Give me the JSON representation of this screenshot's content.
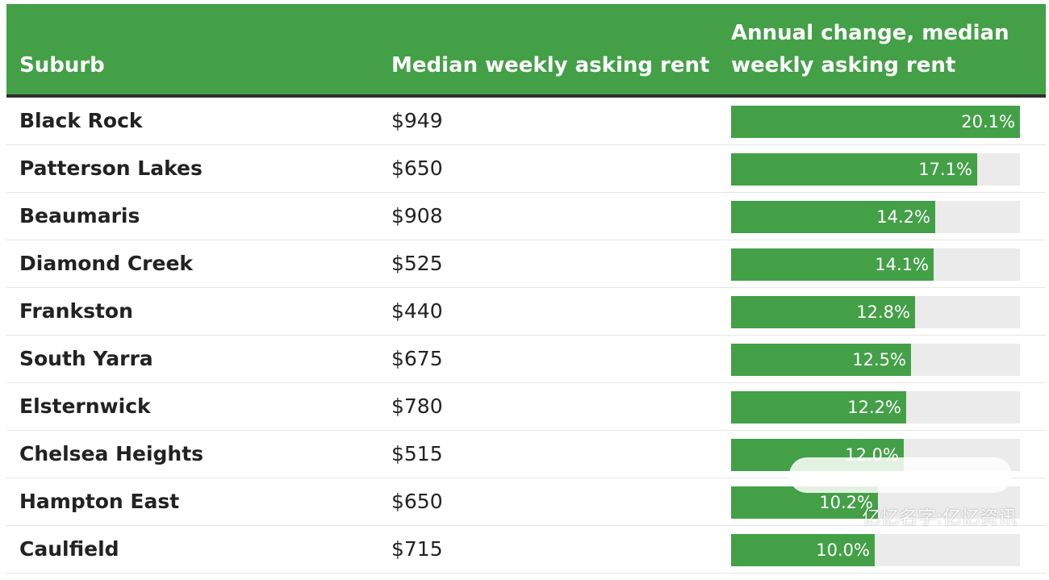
{
  "columns": {
    "suburb": "Suburb",
    "rent": "Median weekly asking rent",
    "change": "Annual change, median weekly asking rent"
  },
  "chart_data": {
    "type": "table",
    "categories": [
      "Black Rock",
      "Patterson Lakes",
      "Beaumaris",
      "Diamond Creek",
      "Frankston",
      "South Yarra",
      "Elsternwick",
      "Chelsea Heights",
      "Hampton East",
      "Caulfield"
    ],
    "rents": [
      "$949",
      "$650",
      "$908",
      "$525",
      "$440",
      "$675",
      "$780",
      "$515",
      "$650",
      "$715"
    ],
    "values": [
      20.1,
      17.1,
      14.2,
      14.1,
      12.8,
      12.5,
      12.2,
      12.0,
      10.2,
      10.0
    ],
    "value_labels": [
      "20.1%",
      "17.1%",
      "14.2%",
      "14.1%",
      "12.8%",
      "12.5%",
      "12.2%",
      "12.0%",
      "10.2%",
      "10.0%"
    ],
    "bar_max": 20.1
  },
  "colors": {
    "header_bg": "#43a047",
    "bar_fill": "#43a047",
    "bar_track": "#ebebeb",
    "header_rule": "#2e2e2e"
  },
  "watermark": "亿忆名字:亿忆资讯"
}
